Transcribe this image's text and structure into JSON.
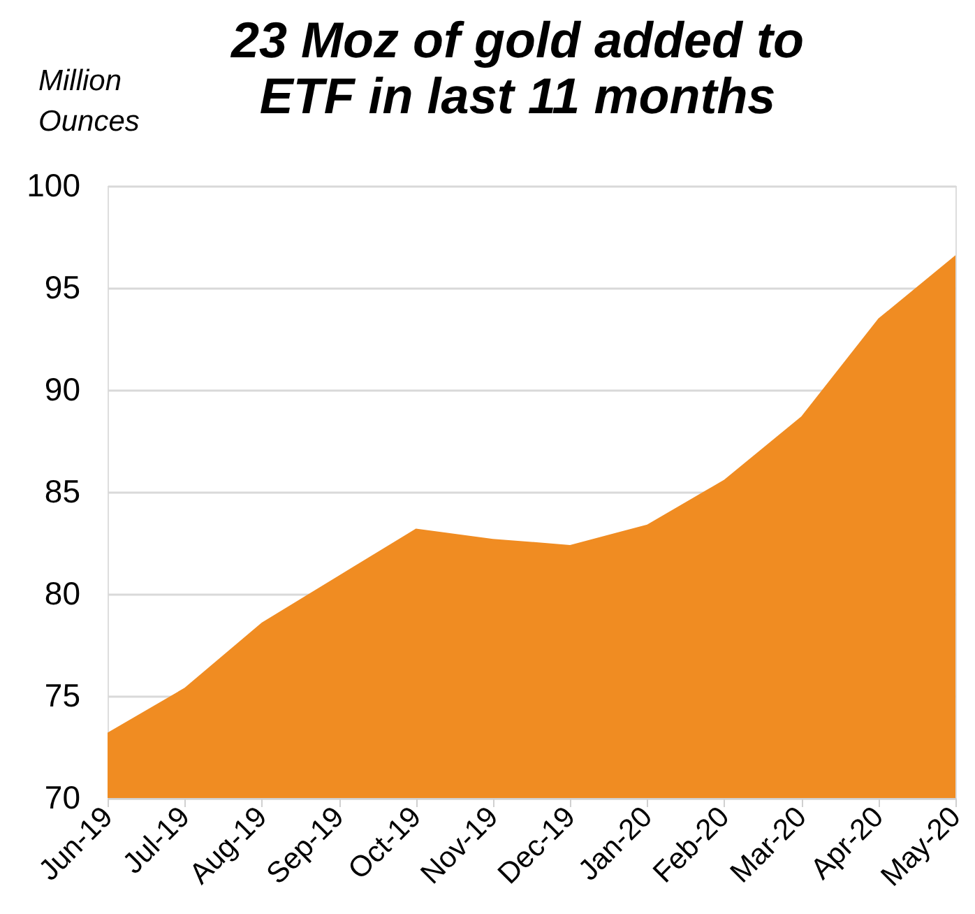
{
  "chart_data": {
    "type": "area",
    "title": "23 Moz of gold added to ETF in last 11 months",
    "ylabel": "Million Ounces",
    "categories": [
      "Jun-19",
      "Jul-19",
      "Aug-19",
      "Sep-19",
      "Oct-19",
      "Nov-19",
      "Dec-19",
      "Jan-20",
      "Feb-20",
      "Mar-20",
      "Apr-20",
      "May-20"
    ],
    "values": [
      73.2,
      75.4,
      78.6,
      80.9,
      83.2,
      82.7,
      82.4,
      83.4,
      85.6,
      88.7,
      93.5,
      96.6
    ],
    "color": "#f08c22",
    "ylim": [
      70,
      100
    ],
    "yticks": [
      70,
      75,
      80,
      85,
      90,
      95,
      100
    ],
    "grid": "y"
  }
}
